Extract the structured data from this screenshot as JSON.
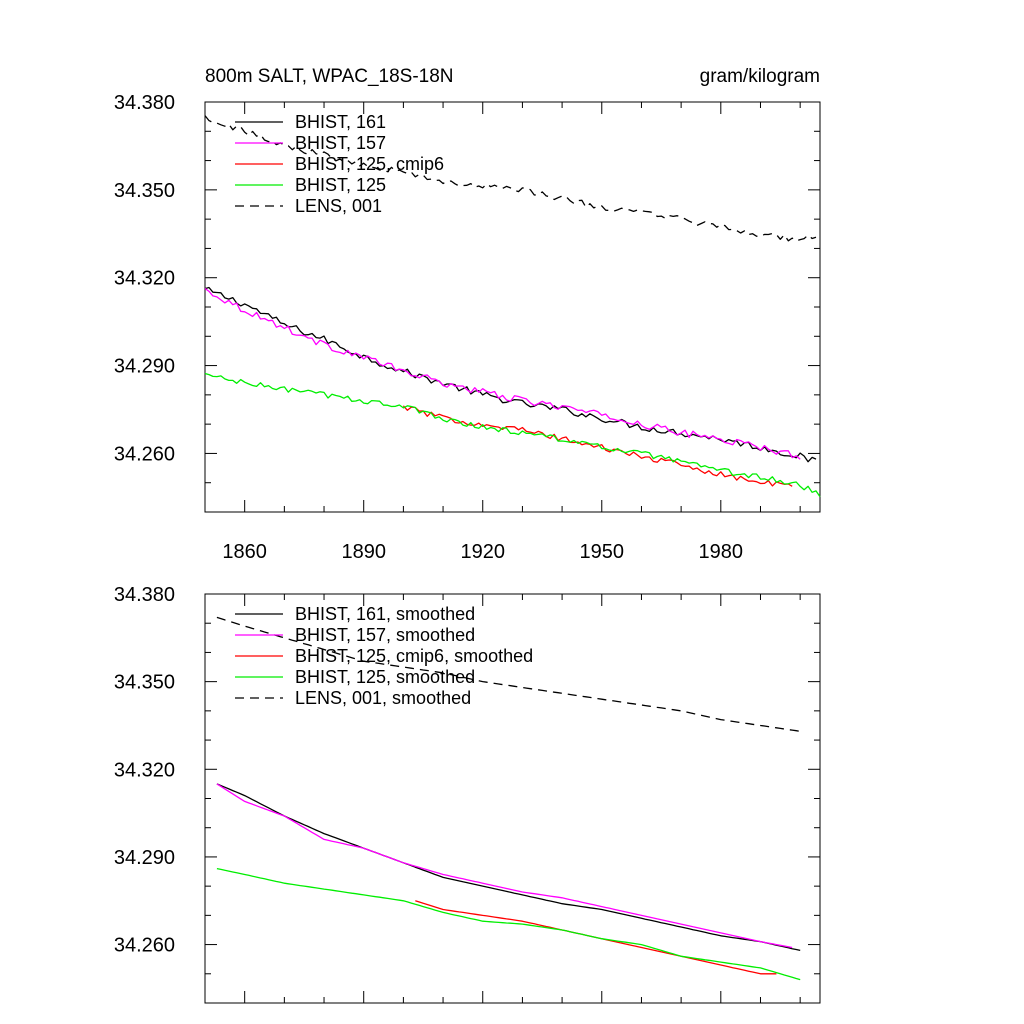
{
  "chart_data": [
    {
      "type": "line",
      "title_left": "800m SALT, WPAC_18S-18N",
      "title_right": "gram/kilogram",
      "xlim": [
        1850,
        2005
      ],
      "ylim": [
        34.24,
        34.38
      ],
      "yticks": [
        34.38,
        34.35,
        34.32,
        34.29,
        34.26
      ],
      "ytick_labels": [
        "34.380",
        "34.350",
        "34.320",
        "34.290",
        "34.260"
      ],
      "xticks": [
        1860,
        1890,
        1920,
        1950,
        1980
      ],
      "xtick_labels": [
        "1860",
        "1890",
        "1920",
        "1950",
        "1980"
      ],
      "grid": false,
      "legend_position": "top-left",
      "series": [
        {
          "name": "BHIST, 161",
          "color": "#000000",
          "dash": "solid",
          "noise": 0.0012,
          "x": [
            1850,
            1860,
            1870,
            1880,
            1890,
            1900,
            1910,
            1920,
            1930,
            1940,
            1950,
            1960,
            1970,
            1980,
            1990,
            2000,
            2004
          ],
          "y": [
            34.316,
            34.311,
            34.304,
            34.299,
            34.293,
            34.288,
            34.284,
            34.28,
            34.277,
            34.275,
            34.272,
            34.269,
            34.267,
            34.265,
            34.262,
            34.259,
            34.257
          ]
        },
        {
          "name": "BHIST, 157",
          "color": "#ff00ff",
          "dash": "solid",
          "noise": 0.0012,
          "x": [
            1850,
            1860,
            1870,
            1880,
            1890,
            1900,
            1910,
            1920,
            1930,
            1940,
            1950,
            1960,
            1970,
            1980,
            1990,
            2000
          ],
          "y": [
            34.316,
            34.309,
            34.303,
            34.297,
            34.293,
            34.288,
            34.284,
            34.281,
            34.278,
            34.276,
            34.273,
            34.27,
            34.267,
            34.265,
            34.262,
            34.259
          ]
        },
        {
          "name": "BHIST, 125, cmip6",
          "color": "#ff0000",
          "dash": "solid",
          "noise": 0.001,
          "x": [
            1900,
            1910,
            1920,
            1930,
            1940,
            1950,
            1960,
            1970,
            1980,
            1990,
            1998
          ],
          "y": [
            34.276,
            34.272,
            34.27,
            34.268,
            34.265,
            34.262,
            34.259,
            34.256,
            34.253,
            34.25,
            34.249
          ]
        },
        {
          "name": "BHIST, 125",
          "color": "#00ee00",
          "dash": "solid",
          "noise": 0.001,
          "x": [
            1850,
            1860,
            1870,
            1880,
            1890,
            1900,
            1910,
            1920,
            1930,
            1940,
            1950,
            1960,
            1970,
            1980,
            1990,
            2000,
            2005
          ],
          "y": [
            34.287,
            34.284,
            34.282,
            34.28,
            34.278,
            34.276,
            34.272,
            34.269,
            34.267,
            34.265,
            34.262,
            34.26,
            34.257,
            34.254,
            34.252,
            34.249,
            34.246
          ]
        },
        {
          "name": "LENS, 001",
          "color": "#000000",
          "dash": "dashed",
          "noise": 0.0012,
          "x": [
            1850,
            1860,
            1870,
            1880,
            1890,
            1900,
            1910,
            1920,
            1930,
            1940,
            1950,
            1960,
            1970,
            1980,
            1990,
            2000,
            2004
          ],
          "y": [
            34.375,
            34.37,
            34.365,
            34.362,
            34.359,
            34.356,
            34.353,
            34.351,
            34.35,
            34.347,
            34.344,
            34.342,
            34.34,
            34.337,
            34.335,
            34.333,
            34.334
          ]
        }
      ]
    },
    {
      "type": "line",
      "xlim": [
        1850,
        2005
      ],
      "ylim": [
        34.24,
        34.38
      ],
      "yticks": [
        34.38,
        34.35,
        34.32,
        34.29,
        34.26
      ],
      "ytick_labels": [
        "34.380",
        "34.350",
        "34.320",
        "34.290",
        "34.260"
      ],
      "xticks": [
        1860,
        1890,
        1920,
        1950,
        1980
      ],
      "grid": false,
      "legend_position": "top-left",
      "series": [
        {
          "name": "BHIST, 161, smoothed",
          "color": "#000000",
          "dash": "solid",
          "noise": 0,
          "x": [
            1853,
            1860,
            1870,
            1880,
            1890,
            1900,
            1910,
            1920,
            1930,
            1940,
            1950,
            1960,
            1970,
            1980,
            1990,
            2000
          ],
          "y": [
            34.315,
            34.311,
            34.304,
            34.298,
            34.293,
            34.288,
            34.283,
            34.28,
            34.277,
            34.274,
            34.272,
            34.269,
            34.266,
            34.263,
            34.261,
            34.258
          ]
        },
        {
          "name": "BHIST, 157, smoothed",
          "color": "#ff00ff",
          "dash": "solid",
          "noise": 0,
          "x": [
            1853,
            1860,
            1870,
            1880,
            1890,
            1900,
            1910,
            1920,
            1930,
            1940,
            1950,
            1960,
            1970,
            1980,
            1990,
            1998
          ],
          "y": [
            34.315,
            34.309,
            34.304,
            34.296,
            34.293,
            34.288,
            34.284,
            34.281,
            34.278,
            34.276,
            34.273,
            34.27,
            34.267,
            34.264,
            34.261,
            34.259
          ]
        },
        {
          "name": "BHIST, 125, cmip6, smoothed",
          "color": "#ff0000",
          "dash": "solid",
          "noise": 0,
          "x": [
            1903,
            1910,
            1920,
            1930,
            1940,
            1950,
            1960,
            1970,
            1980,
            1990,
            1994
          ],
          "y": [
            34.275,
            34.272,
            34.27,
            34.268,
            34.265,
            34.262,
            34.259,
            34.256,
            34.253,
            34.25,
            34.25
          ]
        },
        {
          "name": "BHIST, 125, smoothed",
          "color": "#00ee00",
          "dash": "solid",
          "noise": 0,
          "x": [
            1853,
            1860,
            1870,
            1880,
            1890,
            1900,
            1910,
            1920,
            1930,
            1940,
            1950,
            1960,
            1970,
            1980,
            1990,
            2000
          ],
          "y": [
            34.286,
            34.284,
            34.281,
            34.279,
            34.277,
            34.275,
            34.271,
            34.268,
            34.267,
            34.265,
            34.262,
            34.26,
            34.256,
            34.254,
            34.252,
            34.248
          ]
        },
        {
          "name": "LENS, 001, smoothed",
          "color": "#000000",
          "dash": "dashed",
          "noise": 0,
          "x": [
            1853,
            1860,
            1870,
            1880,
            1890,
            1900,
            1910,
            1920,
            1930,
            1940,
            1950,
            1960,
            1970,
            1980,
            1990,
            2000
          ],
          "y": [
            34.372,
            34.369,
            34.365,
            34.361,
            34.357,
            34.355,
            34.353,
            34.35,
            34.348,
            34.346,
            34.344,
            34.342,
            34.34,
            34.337,
            34.335,
            34.333
          ]
        }
      ]
    }
  ]
}
